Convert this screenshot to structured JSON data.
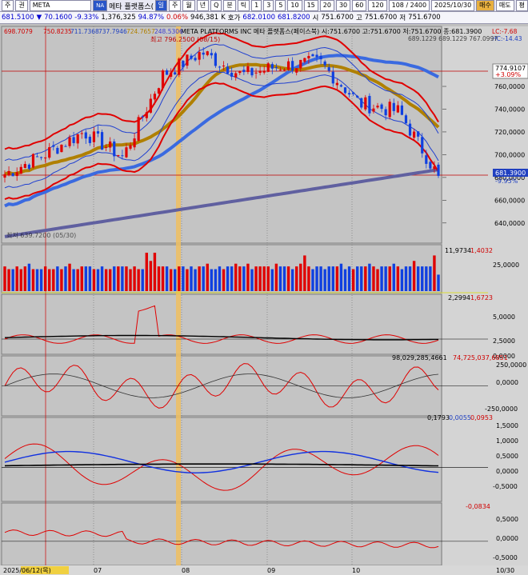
{
  "toolbar": {
    "buttons": [
      "주",
      "권",
      "META"
    ],
    "name_badge": "NA",
    "name": "메타 플랫폼스(패",
    "period_buttons": [
      "일",
      "주",
      "월",
      "년",
      "Q",
      "분",
      "틱"
    ],
    "minute_buttons": [
      "1",
      "3",
      "5",
      "10",
      "15",
      "20",
      "30",
      "60",
      "120"
    ],
    "count": "108 / 2400",
    "date": "2025/10/30",
    "buy": "매수",
    "sell": "매도",
    "eval": "평"
  },
  "quote": {
    "price": "681.5100",
    "arrow": "▼",
    "change": "70.1600",
    "change_pct": "-9.33%",
    "volume": "1,376,325",
    "vol_ratio": "94.87%",
    "turnover_ratio": "0.06%",
    "amount": "946,381",
    "amount_unit": "K",
    "ask_label": "호가",
    "ask": "682.0100",
    "bid": "681.8200",
    "open_label": "시",
    "open": "751.6700",
    "high_label": "고",
    "high": "751.6700",
    "low_label": "저",
    "low": "751.6700"
  },
  "chart_data": {
    "type": "line",
    "title": "META PLATFORMS INC  메타 플랫폼스(페이스북) 시:751.6700 고:751.6700 저:751.6700 종:681.3900",
    "ma_values": [
      "698.7079",
      "750.8235",
      "711.7368",
      "737.7946",
      "724.7657",
      "248.5306"
    ],
    "ma_colors": [
      "#d00000",
      "#d00000",
      "#2040c0",
      "#2040c0",
      "#b08000",
      "#4040d0"
    ],
    "right_info": "LC:-7.68",
    "right_info2": "HC:-14.43",
    "bb_values": "689.1229  689.1229  767.0997",
    "high_annotation": "최고 796.2500 (08/15)",
    "low_annotation": "최저 639.7200 (05/30)",
    "last_label": "774.9107",
    "last_change": "+3.09%",
    "current_price": "681.3900",
    "current_change": "-9.95%",
    "x_labels": [
      "2025/06/12(목)",
      "07",
      "08",
      "09",
      "10",
      "10/30"
    ],
    "ylim": [
      623,
      812
    ],
    "y_ticks": [
      "760,0000",
      "740,0000",
      "720,0000",
      "700,0000",
      "680,0000",
      "660,0000",
      "640,0000"
    ],
    "price_series": {
      "x": [
        "06/12",
        "06/27",
        "07/14",
        "07/30",
        "08/01",
        "08/15",
        "08/29",
        "09/12",
        "09/26",
        "10/10",
        "10/24",
        "10/30"
      ],
      "close": [
        683,
        700,
        720,
        698,
        770,
        790,
        770,
        778,
        781,
        745,
        738,
        681
      ]
    },
    "volume_panel": {
      "labels": [
        "11,9734",
        "1,4032"
      ],
      "y_ticks": [
        "25,0000"
      ],
      "values": [
        9,
        8,
        8,
        9,
        8,
        9,
        10,
        8,
        8,
        8,
        9,
        8,
        8,
        9,
        8,
        9,
        10,
        8,
        8,
        9,
        9,
        9,
        8,
        8,
        9,
        8,
        8,
        9,
        9,
        9,
        9,
        8,
        9,
        8,
        8,
        14,
        11,
        14,
        9,
        9,
        9,
        8,
        8,
        9,
        9,
        8,
        9,
        8,
        9,
        9,
        10,
        8,
        8,
        9,
        8,
        9,
        9,
        10,
        9,
        9,
        10,
        8,
        9,
        9,
        9,
        9,
        8,
        10,
        9,
        9,
        9,
        8,
        9,
        10,
        13,
        9,
        8,
        9,
        9,
        8,
        9,
        9,
        9,
        10,
        8,
        9,
        8,
        9,
        9,
        9,
        10,
        9,
        8,
        9,
        9,
        9,
        10,
        9,
        8,
        9,
        9,
        11,
        9,
        9,
        9,
        9,
        13,
        6
      ]
    },
    "panel2": {
      "labels": [
        "2,2994",
        "1,6723"
      ],
      "y_ticks": [
        "5,0000",
        "2,5000",
        "0,0000"
      ]
    },
    "panel3": {
      "labels": [
        "98,029,285,4661",
        "74,725,037,6851"
      ],
      "y_ticks": [
        "250,0000",
        "0,0000",
        "-250,0000"
      ]
    },
    "panel4": {
      "labels": [
        "0,1793",
        "0,0055",
        "0,0953"
      ],
      "y_ticks": [
        "1,5000",
        "1,0000",
        "0,5000",
        "0,0000",
        "-0,5000"
      ]
    },
    "panel5": {
      "labels": [
        "-0,0834"
      ],
      "y_ticks": [
        "0,5000",
        "0,0000",
        "-0,5000"
      ]
    }
  }
}
